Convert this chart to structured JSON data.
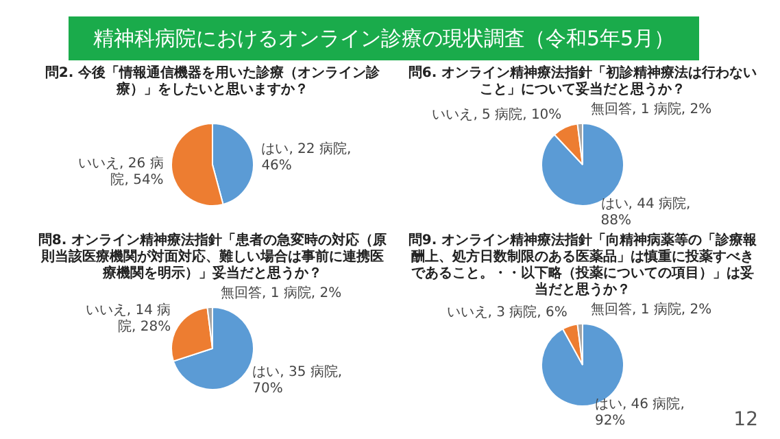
{
  "chart_data": [
    {
      "type": "other",
      "title": "精神科病院におけるオンライン診療の現状調査（令和5年5月）",
      "annotations": [
        "12"
      ]
    },
    {
      "type": "pie",
      "title": "問2. 今後「情報通信機器を用いた診療（オンライン診療）」をしたいと思いますか？",
      "categories": [
        "はい",
        "いいえ"
      ],
      "values": [
        22,
        26
      ],
      "colors": [
        "#5b9bd5",
        "#ed7d31"
      ],
      "value_labels": [
        ", 22 病院, 46%",
        ", 26 病院, 54%"
      ]
    },
    {
      "type": "pie",
      "title": "問6. オンライン精神療法指針「初診精神療法は行わないこと」について妥当だと思うか？",
      "categories": [
        "はい",
        "いいえ",
        "無回答"
      ],
      "values": [
        44,
        5,
        1
      ],
      "colors": [
        "#5b9bd5",
        "#ed7d31",
        "#a5a5a5"
      ],
      "value_labels": [
        ", 44 病院, 88%",
        ", 5 病院, 10%",
        ", 1 病院, 2%"
      ]
    },
    {
      "type": "pie",
      "title": "問8. オンライン精神療法指針「患者の急変時の対応（原則当該医療機関が対面対応、難しい場合は事前に連携医療機関を明示）」妥当だと思うか？",
      "categories": [
        "はい",
        "いいえ",
        "無回答"
      ],
      "values": [
        35,
        14,
        1
      ],
      "colors": [
        "#5b9bd5",
        "#ed7d31",
        "#a5a5a5"
      ],
      "value_labels": [
        ", 35 病院, 70%",
        ", 14 病院, 28%",
        ", 1 病院, 2%"
      ]
    },
    {
      "type": "pie",
      "title": "問9. オンライン精神療法指針「向精神病薬等の「診療報酬上、処方日数制限のある医薬品」は慎重に投薬すべきであること。・・以下略（投薬についての項目）」は妥当だと思うか？",
      "categories": [
        "はい",
        "いいえ",
        "無回答"
      ],
      "values": [
        46,
        3,
        1
      ],
      "colors": [
        "#5b9bd5",
        "#ed7d31",
        "#a5a5a5"
      ],
      "value_labels": [
        ", 46 病院, 92%",
        ", 3 病院, 6%",
        ", 1 病院, 2%"
      ]
    }
  ]
}
